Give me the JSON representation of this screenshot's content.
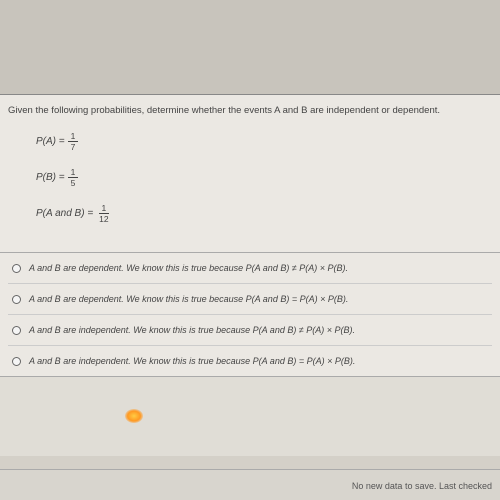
{
  "question": {
    "prompt": "Given the following probabilities, determine whether the events A and B are independent or dependent.",
    "eq1_left": "P(A) = ",
    "eq1_num": "1",
    "eq1_den": "7",
    "eq2_left": "P(B) = ",
    "eq2_num": "1",
    "eq2_den": "5",
    "eq3_left": "P(A and B) = ",
    "eq3_num": "1",
    "eq3_den": "12"
  },
  "options": {
    "a": "A and B are dependent. We know this is true because P(A and B) ≠ P(A) × P(B).",
    "b": "A and B are dependent. We know this is true because P(A and B) = P(A) × P(B).",
    "c": "A and B are independent. We know this is true because P(A and B) ≠ P(A) × P(B).",
    "d": "A and B are independent. We know this is true because P(A and B) = P(A) × P(B)."
  },
  "footer": {
    "status": "No new data to save. Last checked"
  },
  "colors": {
    "bg_outer": "#d4d0c8",
    "bg_content": "#ebe8e3",
    "text": "#444444",
    "border": "#aaaaaa",
    "glow": "#ffcc44"
  }
}
